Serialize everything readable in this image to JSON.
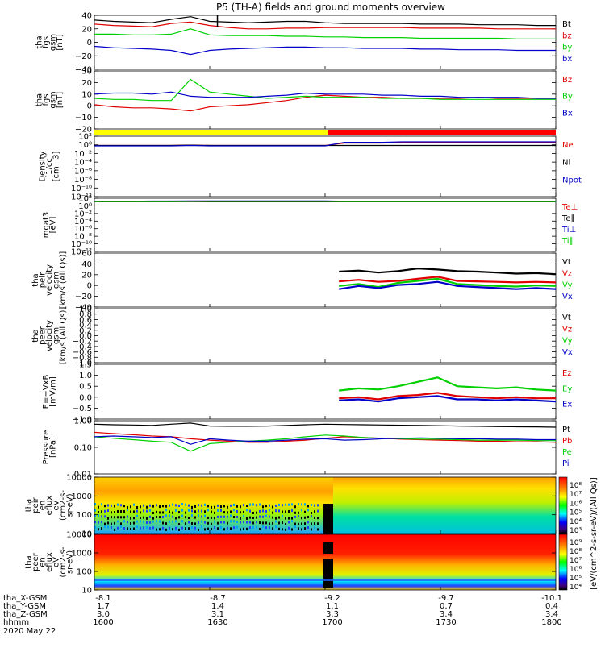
{
  "title": "P5 (TH-A) fields and ground moments overview",
  "date_label": "2020 May 22",
  "colors": {
    "black": "#000000",
    "red": "#e00000",
    "green": "#00d000",
    "blue": "#0000c8",
    "yellow": "#ffff00",
    "bar_red": "#ff0000"
  },
  "bottom_axis": {
    "rows": [
      {
        "label": "tha_X-GSM",
        "values": [
          "-8.1",
          "-8.7",
          "-9.2",
          "-9.7",
          "-10.1"
        ]
      },
      {
        "label": "tha_Y-GSM",
        "values": [
          "1.7",
          "1.4",
          "1.1",
          "0.7",
          "0.4"
        ]
      },
      {
        "label": "tha_Z-GSM",
        "values": [
          "3.0",
          "3.1",
          "3.3",
          "3.4",
          "3.4"
        ]
      },
      {
        "label": "hhmm",
        "values": [
          "1600",
          "1630",
          "1700",
          "1730",
          "1800"
        ]
      }
    ]
  },
  "mode_bar": {
    "yellow_until_hhmm": "1700",
    "red_after_hhmm": "1700"
  },
  "chart_data": [
    {
      "type": "line",
      "id": "fgs_gsm_a",
      "ylabel_lines": [
        "tha",
        "fgs",
        "gsm",
        "[nT]"
      ],
      "ylim": [
        -40,
        40
      ],
      "ticks": [
        "40",
        "20",
        "0",
        "−20",
        "−40"
      ],
      "series": [
        {
          "name": "Bt",
          "color": "#000000",
          "values": [
            33,
            31,
            30,
            29,
            34,
            38,
            31,
            30,
            29,
            30,
            31,
            31,
            29,
            28,
            28,
            28,
            28,
            27,
            27,
            27,
            26,
            26,
            26,
            25,
            25
          ]
        },
        {
          "name": "bz",
          "color": "#e00000",
          "values": [
            27,
            25,
            24,
            23,
            28,
            30,
            25,
            22,
            20,
            20,
            21,
            21,
            22,
            22,
            22,
            22,
            22,
            21,
            21,
            21,
            21,
            20,
            20,
            20,
            20
          ]
        },
        {
          "name": "by",
          "color": "#00d000",
          "values": [
            12,
            12,
            11,
            11,
            12,
            20,
            11,
            10,
            10,
            10,
            9,
            9,
            8,
            8,
            7,
            7,
            7,
            6,
            6,
            6,
            6,
            6,
            5,
            5,
            5
          ]
        },
        {
          "name": "bx",
          "color": "#0000c8",
          "values": [
            -6,
            -8,
            -9,
            -10,
            -12,
            -18,
            -12,
            -10,
            -9,
            -8,
            -7,
            -7,
            -8,
            -8,
            -9,
            -9,
            -9,
            -10,
            -10,
            -11,
            -11,
            -11,
            -12,
            -12,
            -12
          ]
        }
      ]
    },
    {
      "type": "line",
      "id": "fgs_gsm_b",
      "ylabel_lines": [
        "tha",
        "fgs",
        "gsm",
        "[nT]"
      ],
      "ylim": [
        -25,
        30
      ],
      "ticks": [
        "30",
        "20",
        "10",
        "0",
        "−10",
        "−20"
      ],
      "series": [
        {
          "name": "Bz",
          "color": "#e00000",
          "values": [
            -2,
            -4,
            -5,
            -5,
            -6,
            -8,
            -4,
            -3,
            -2,
            0,
            2,
            5,
            7,
            6,
            5,
            5,
            4,
            4,
            4,
            4,
            5,
            4,
            4,
            4,
            4
          ]
        },
        {
          "name": "By",
          "color": "#00d000",
          "values": [
            4,
            3,
            3,
            2,
            2,
            22,
            10,
            8,
            6,
            4,
            5,
            6,
            5,
            5,
            5,
            4,
            4,
            4,
            3,
            3,
            3,
            3,
            3,
            3,
            3
          ]
        },
        {
          "name": "Bx",
          "color": "#0000c8",
          "values": [
            8,
            9,
            9,
            8,
            10,
            6,
            5,
            5,
            5,
            6,
            7,
            9,
            8,
            8,
            8,
            7,
            7,
            6,
            6,
            5,
            5,
            5,
            5,
            4,
            4
          ]
        }
      ]
    },
    {
      "type": "line",
      "id": "density",
      "yscale": "log",
      "ylabel_lines": [
        "Density",
        "[1/cc]",
        "[cm−3]"
      ],
      "ylim": [
        1e-13,
        100
      ],
      "ticks": [
        "10²",
        "10⁰",
        "10⁻²",
        "10⁻⁴",
        "10⁻⁶",
        "10⁻⁸",
        "10⁻¹⁰",
        "10⁻¹²"
      ],
      "series": [
        {
          "name": "Ne",
          "color": "#e00000",
          "values": [
            0.5,
            0.5,
            0.5,
            0.5,
            0.5,
            0.6,
            0.5,
            0.5,
            0.5,
            0.5,
            0.5,
            0.5,
            0.5,
            2,
            2,
            2,
            3,
            3,
            3,
            3,
            3,
            3,
            3,
            3,
            3
          ]
        },
        {
          "name": "Ni",
          "color": "#000000",
          "values": [
            0.5,
            0.5,
            0.5,
            0.5,
            0.5,
            0.6,
            0.5,
            0.5,
            0.5,
            0.5,
            0.5,
            0.5,
            0.5,
            0.5,
            0.5,
            0.5,
            0.5,
            0.5,
            0.5,
            0.5,
            0.5,
            0.5,
            0.5,
            0.5,
            0.5
          ]
        },
        {
          "name": "Npot",
          "color": "#0000c8",
          "values": [
            0.4,
            0.4,
            0.4,
            0.4,
            0.4,
            0.5,
            0.4,
            0.4,
            0.4,
            0.4,
            0.4,
            0.4,
            0.4,
            3,
            3,
            3,
            4,
            4,
            4,
            4,
            4,
            4,
            4,
            4,
            4
          ]
        }
      ]
    },
    {
      "type": "line",
      "id": "temperature",
      "yscale": "log",
      "ylabel_lines": [
        "mgat3",
        "[eV]"
      ],
      "ylim": [
        1e-13,
        1000
      ],
      "ticks": [
        "10²",
        "10⁰",
        "10⁻²",
        "10⁻⁴",
        "10⁻⁶",
        "10⁻⁸",
        "10⁻¹⁰",
        "10⁻¹²"
      ],
      "series": [
        {
          "name": "Te⊥",
          "color": "#e00000",
          "values": [
            100,
            100,
            100,
            100,
            100,
            120,
            100,
            100,
            100,
            100,
            100,
            100,
            100,
            100,
            100,
            100,
            100,
            100,
            100,
            100,
            100,
            100,
            100,
            100,
            100
          ]
        },
        {
          "name": "Te∥",
          "color": "#000000",
          "values": [
            90,
            90,
            90,
            90,
            90,
            100,
            90,
            90,
            90,
            90,
            90,
            90,
            90,
            90,
            90,
            90,
            90,
            90,
            90,
            90,
            90,
            90,
            90,
            90,
            90
          ]
        },
        {
          "name": "Ti⊥",
          "color": "#0000c8",
          "values": [
            130,
            130,
            130,
            140,
            140,
            160,
            150,
            150,
            150,
            150,
            150,
            150,
            150,
            130,
            130,
            130,
            130,
            130,
            130,
            130,
            130,
            130,
            130,
            130,
            130
          ]
        },
        {
          "name": "Ti∥",
          "color": "#00d000",
          "values": [
            110,
            110,
            110,
            110,
            110,
            130,
            120,
            120,
            120,
            120,
            120,
            120,
            120,
            110,
            110,
            110,
            110,
            110,
            110,
            110,
            110,
            110,
            110,
            110,
            110
          ]
        }
      ]
    },
    {
      "type": "line",
      "id": "peir_velocity",
      "ylabel_lines": [
        "tha",
        "peir",
        "velocity",
        "gsm",
        "[km/s (All Qs)]"
      ],
      "ylim": [
        -45,
        60
      ],
      "ticks": [
        "60",
        "40",
        "20",
        "0",
        "−20",
        "−40"
      ],
      "x_start_hhmm": "1700",
      "series": [
        {
          "name": "Vt",
          "color": "#000000",
          "values": [
            24,
            26,
            22,
            25,
            30,
            28,
            25,
            24,
            22,
            20,
            21,
            19
          ]
        },
        {
          "name": "Vz",
          "color": "#e00000",
          "values": [
            5,
            8,
            4,
            6,
            10,
            14,
            6,
            5,
            4,
            3,
            4,
            3
          ]
        },
        {
          "name": "Vy",
          "color": "#00d000",
          "values": [
            -4,
            0,
            -6,
            2,
            6,
            10,
            0,
            -2,
            -4,
            -5,
            -3,
            -4
          ]
        },
        {
          "name": "Vx",
          "color": "#0000c8",
          "values": [
            -10,
            -4,
            -8,
            -2,
            0,
            4,
            -4,
            -6,
            -8,
            -10,
            -8,
            -10
          ]
        }
      ]
    },
    {
      "type": "line",
      "id": "peer_velocity",
      "ylabel_lines": [
        "tha",
        "peer",
        "velocity",
        "gsm",
        "[km/s (All Qs)]"
      ],
      "ylim": [
        -1,
        1
      ],
      "ticks": [
        "1.0",
        "0.8",
        "0.6",
        "0.4",
        "0.2",
        "0.0",
        "−0.2",
        "−0.4",
        "−0.6",
        "−0.8",
        "−1.0"
      ],
      "series": [
        {
          "name": "Vt",
          "color": "#000000",
          "values": []
        },
        {
          "name": "Vz",
          "color": "#e00000",
          "values": []
        },
        {
          "name": "Vy",
          "color": "#00d000",
          "values": []
        },
        {
          "name": "Vx",
          "color": "#0000c8",
          "values": []
        }
      ]
    },
    {
      "type": "line",
      "id": "efield",
      "ylabel_lines": [
        "E=−VxB",
        "[mV/m]"
      ],
      "ylim": [
        -1.0,
        1.5
      ],
      "ticks": [
        "1.5",
        "1.0",
        "0.5",
        "0.0",
        "−0.5",
        "−1.0"
      ],
      "x_start_hhmm": "1700",
      "series": [
        {
          "name": "Ez",
          "color": "#e00000",
          "values": [
            -0.05,
            0.0,
            -0.1,
            0.05,
            0.1,
            0.2,
            0.05,
            0.0,
            -0.05,
            0.0,
            -0.05,
            -0.05
          ]
        },
        {
          "name": "Ey",
          "color": "#00d000",
          "values": [
            0.3,
            0.4,
            0.35,
            0.5,
            0.7,
            0.9,
            0.5,
            0.45,
            0.4,
            0.45,
            0.35,
            0.3
          ]
        },
        {
          "name": "Ex",
          "color": "#0000c8",
          "values": [
            -0.15,
            -0.1,
            -0.2,
            -0.05,
            0.0,
            0.05,
            -0.1,
            -0.1,
            -0.15,
            -0.1,
            -0.15,
            -0.2
          ]
        }
      ]
    },
    {
      "type": "line",
      "id": "pressure",
      "yscale": "log",
      "ylabel_lines": [
        "Pressure",
        "[nPa]"
      ],
      "ylim": [
        0.01,
        1.3
      ],
      "ticks": [
        "1.00",
        "0.10",
        "0.01"
      ],
      "series": [
        {
          "name": "Pt",
          "color": "#000000",
          "values": [
            0.95,
            0.9,
            0.88,
            0.85,
            0.95,
            1.05,
            0.8,
            0.78,
            0.78,
            0.8,
            0.85,
            0.9,
            0.95,
            0.92,
            0.9,
            0.88,
            0.86,
            0.85,
            0.82,
            0.8,
            0.78,
            0.76,
            0.75,
            0.74,
            0.72
          ]
        },
        {
          "name": "Pb",
          "color": "#e00000",
          "values": [
            0.45,
            0.4,
            0.36,
            0.32,
            0.3,
            0.25,
            0.22,
            0.2,
            0.18,
            0.18,
            0.2,
            0.22,
            0.26,
            0.3,
            0.28,
            0.26,
            0.24,
            0.23,
            0.22,
            0.21,
            0.2,
            0.2,
            0.19,
            0.19,
            0.18
          ]
        },
        {
          "name": "Pe",
          "color": "#00d000",
          "values": [
            0.3,
            0.26,
            0.23,
            0.2,
            0.18,
            0.08,
            0.16,
            0.18,
            0.2,
            0.22,
            0.25,
            0.3,
            0.35,
            0.32,
            0.28,
            0.26,
            0.25,
            0.24,
            0.24,
            0.23,
            0.22,
            0.22,
            0.22,
            0.21,
            0.21
          ]
        },
        {
          "name": "Pi",
          "color": "#0000c8",
          "values": [
            0.3,
            0.32,
            0.3,
            0.28,
            0.3,
            0.15,
            0.25,
            0.22,
            0.2,
            0.2,
            0.22,
            0.24,
            0.25,
            0.22,
            0.23,
            0.25,
            0.26,
            0.27,
            0.26,
            0.25,
            0.25,
            0.24,
            0.24,
            0.23,
            0.23
          ]
        }
      ]
    },
    {
      "type": "heatmap",
      "id": "peir_spec",
      "yscale": "log",
      "ylabel_lines": [
        "tha",
        "peir",
        "en",
        "eflux",
        "eV",
        "(cm2-s-",
        "sr-eV)"
      ],
      "ylim": [
        5,
        20000
      ],
      "ticks": [
        "10000",
        "1000",
        "100",
        "10"
      ],
      "colorbar_ticks": [
        "10⁸",
        "10⁷",
        "10⁶",
        "10⁵",
        "10⁴",
        "10³"
      ]
    },
    {
      "type": "heatmap",
      "id": "peer_spec",
      "yscale": "log",
      "ylabel_lines": [
        "tha",
        "peer",
        "en",
        "eflux",
        "eV",
        "(cm2-s-",
        "sr-eV)"
      ],
      "ylim": [
        5,
        20000
      ],
      "ticks": [
        "10000",
        "1000",
        "100",
        "10"
      ],
      "colorbar_ticks": [
        "10⁹",
        "10⁸",
        "10⁷",
        "10⁶",
        "10⁵",
        "10⁴"
      ],
      "colorbar_label": "[eV/(cm^2-s-sr-eV)/(All Qs)]"
    }
  ]
}
